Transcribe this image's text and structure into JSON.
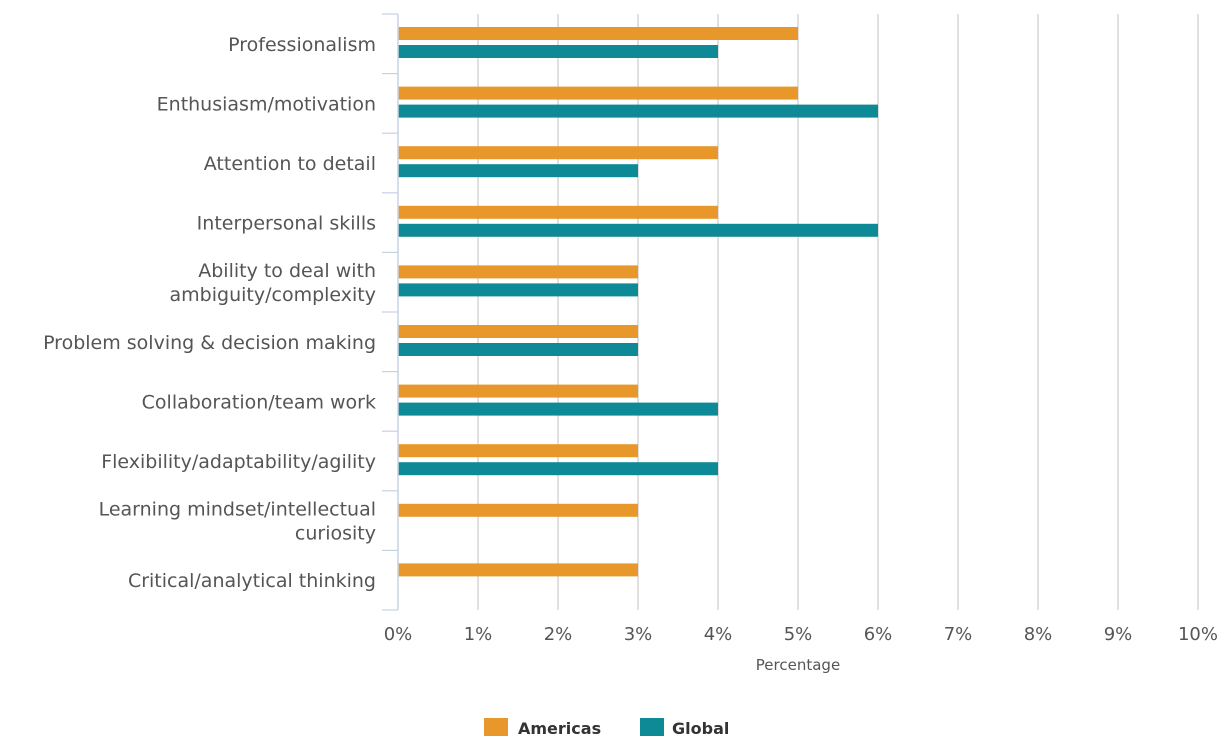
{
  "chart_data": {
    "type": "bar",
    "orientation": "horizontal",
    "categories": [
      "Professionalism",
      "Enthusiasm/motivation",
      "Attention to detail",
      "Interpersonal skills",
      "Ability to deal with ambiguity/complexity",
      "Problem solving & decision making",
      "Collaboration/team work",
      "Flexibility/adaptability/agility",
      "Learning mindset/intellectual curiosity",
      "Critical/analytical thinking"
    ],
    "category_lines": [
      [
        "Professionalism"
      ],
      [
        "Enthusiasm/motivation"
      ],
      [
        "Attention to detail"
      ],
      [
        "Interpersonal skills"
      ],
      [
        "Ability to deal with",
        "ambiguity/complexity"
      ],
      [
        "Problem solving & decision making"
      ],
      [
        "Collaboration/team work"
      ],
      [
        "Flexibility/adaptability/agility"
      ],
      [
        "Learning mindset/intellectual",
        "curiosity"
      ],
      [
        "Critical/analytical thinking"
      ]
    ],
    "series": [
      {
        "name": "Americas",
        "color": "#E8982A",
        "values": [
          5,
          5,
          4,
          4,
          3,
          3,
          3,
          3,
          3,
          3
        ]
      },
      {
        "name": "Global",
        "color": "#0E8A96",
        "values": [
          4,
          6,
          3,
          6,
          3,
          3,
          4,
          4,
          null,
          null
        ]
      }
    ],
    "xlabel": "Percentage",
    "xlim": [
      0,
      10
    ],
    "xticks": [
      0,
      1,
      2,
      3,
      4,
      5,
      6,
      7,
      8,
      9,
      10
    ],
    "tick_suffix": "%",
    "grid": true,
    "legend_position": "bottom-center"
  }
}
